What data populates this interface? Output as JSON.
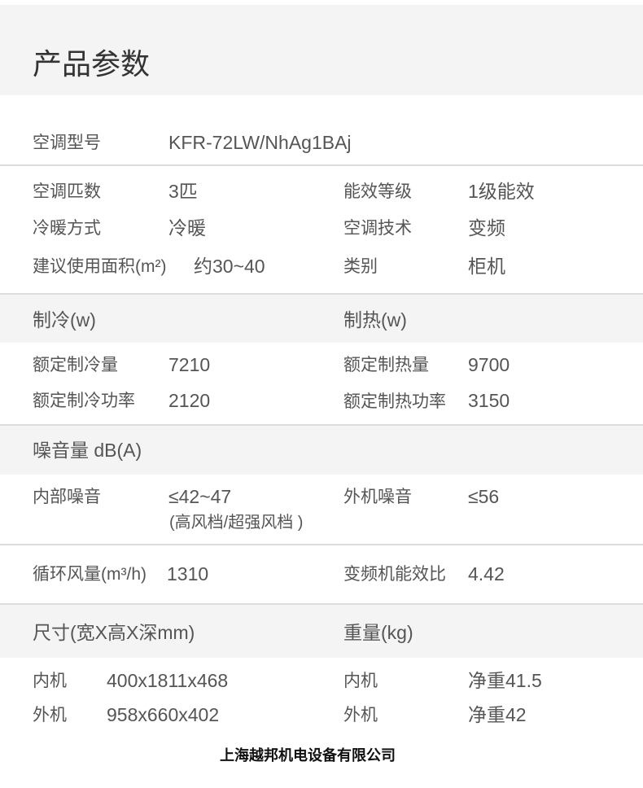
{
  "title": "产品参数",
  "model": {
    "label": "空调型号",
    "value": "KFR-72LW/NhAg1BAj"
  },
  "basic": [
    {
      "l1": "空调匹数",
      "v1": "3匹",
      "l2": "能效等级",
      "v2": "1级能效"
    },
    {
      "l1": "冷暖方式",
      "v1": "冷暖",
      "l2": "空调技术",
      "v2": "变频"
    },
    {
      "l1": "建议使用面积(m²)",
      "v1": "约30~40",
      "l2": "类别",
      "v2": "柜机"
    }
  ],
  "cooling_heading": "制冷(w)",
  "heating_heading": "制热(w)",
  "power": [
    {
      "l1": "额定制冷量",
      "v1": "7210",
      "l2": "额定制热量",
      "v2": "9700"
    },
    {
      "l1": "额定制冷功率",
      "v1": "2120",
      "l2": "额定制热功率",
      "v2": "3150"
    }
  ],
  "noise_heading": "噪音量 dB(A)",
  "noise": {
    "l1": "内部噪音",
    "v1": "≤42~47",
    "v1_note": "(高风档/超强风档 )",
    "l2": "外机噪音",
    "v2": "≤56"
  },
  "airflow": {
    "l1": "循环风量(m³/h)",
    "v1": "1310",
    "l2": "变频机能效比",
    "v2": "4.42"
  },
  "size_heading": "尺寸(宽X高X深mm)",
  "weight_heading": "重量(kg)",
  "size": [
    {
      "l1": "内机",
      "v1": "400x1811x468",
      "l2": "内机",
      "v2": "净重41.5"
    },
    {
      "l1": "外机",
      "v1": "958x660x402",
      "l2": "外机",
      "v2": "净重42"
    }
  ],
  "watermark": "上海越邦机电设备有限公司"
}
